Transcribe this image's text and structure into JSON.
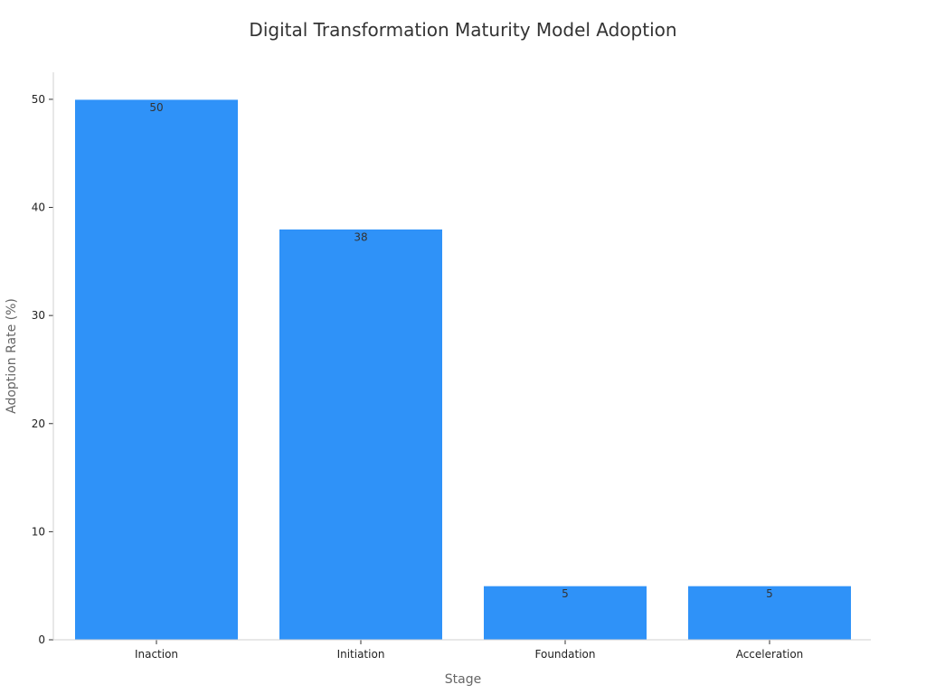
{
  "chart_data": {
    "type": "bar",
    "title": "Digital Transformation Maturity Model Adoption",
    "xlabel": "Stage",
    "ylabel": "Adoption Rate (%)",
    "categories": [
      "Inaction",
      "Initiation",
      "Foundation",
      "Acceleration"
    ],
    "values": [
      50,
      38,
      5,
      5
    ],
    "data_labels": [
      "50",
      "38",
      "5",
      "5"
    ],
    "ylim": [
      0,
      52.5
    ],
    "yticks": [
      0,
      10,
      20,
      30,
      40,
      50
    ],
    "grid": false,
    "bar_color": "#2f92f8",
    "bar_edge_color": "#ffffff"
  }
}
